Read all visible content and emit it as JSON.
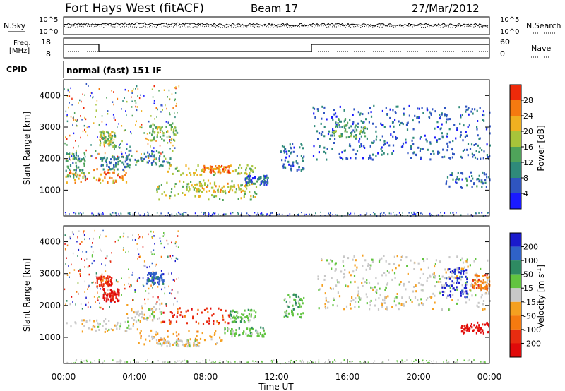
{
  "header": {
    "title": "Fort Hays West (fitACF)",
    "beam": "Beam 17",
    "date": "27/Mar/2012"
  },
  "top_panels": {
    "noise": {
      "left_label": "N.Sky",
      "right_label": "N.Search",
      "left_ticks": [
        "10^5",
        "10^0"
      ],
      "right_ticks": [
        "10^5",
        "10^0"
      ]
    },
    "freq": {
      "left_label_1": "Freq.",
      "left_label_2": "[MHz]",
      "right_label": "Nave",
      "left_ticks": [
        "18",
        "8"
      ],
      "right_ticks": [
        "60",
        "0"
      ]
    },
    "cpid": {
      "label": "CPID",
      "mode_text": "normal (fast) 151 IF"
    }
  },
  "chart_data": [
    {
      "type": "heatmap",
      "title": "",
      "xlabel": "Time UT",
      "ylabel": "Slant Range [km]",
      "x_ticks": [
        "00:00",
        "04:00",
        "08:00",
        "12:00",
        "16:00",
        "20:00",
        "00:00"
      ],
      "xlim": [
        0,
        24
      ],
      "ylim": [
        180,
        4500
      ],
      "y_ticks": [
        1000,
        2000,
        3000,
        4000
      ],
      "colorbar": {
        "label": "Power [dB]",
        "ticks": [
          4,
          8,
          12,
          16,
          20,
          24,
          28
        ],
        "range": [
          0,
          32
        ],
        "colors": [
          "#1a1aff",
          "#2f55c0",
          "#2f8a7a",
          "#4fa35a",
          "#a8c43a",
          "#f0b020",
          "#f57a10",
          "#ee2a0a"
        ]
      },
      "regions": [
        {
          "t0": 0.1,
          "t1": 3.5,
          "r0": 1250,
          "r1": 1700,
          "level": 22
        },
        {
          "t0": 0.1,
          "t1": 1.2,
          "r0": 1400,
          "r1": 2200,
          "level": 10
        },
        {
          "t0": 2.0,
          "t1": 3.6,
          "r0": 1650,
          "r1": 2100,
          "level": 6
        },
        {
          "t0": 2.0,
          "t1": 2.9,
          "r0": 2400,
          "r1": 2900,
          "level": 14
        },
        {
          "t0": 3.5,
          "t1": 6.0,
          "r0": 1750,
          "r1": 2300,
          "level": 8
        },
        {
          "t0": 4.8,
          "t1": 6.3,
          "r0": 2600,
          "r1": 3150,
          "level": 14
        },
        {
          "t0": 5.6,
          "t1": 10.8,
          "r0": 1500,
          "r1": 1850,
          "level": 17
        },
        {
          "t0": 7.8,
          "t1": 9.3,
          "r0": 1580,
          "r1": 1800,
          "level": 24
        },
        {
          "t0": 5.0,
          "t1": 11.0,
          "r0": 700,
          "r1": 1350,
          "level": 15
        },
        {
          "t0": 7.0,
          "t1": 10.5,
          "r0": 950,
          "r1": 1250,
          "level": 19
        },
        {
          "t0": 10.2,
          "t1": 11.5,
          "r0": 1200,
          "r1": 1500,
          "level": 6
        },
        {
          "t0": 12.2,
          "t1": 13.5,
          "r0": 1650,
          "r1": 2500,
          "level": 5
        },
        {
          "t0": 14.0,
          "t1": 24.0,
          "r0": 2000,
          "r1": 3700,
          "level": 5
        },
        {
          "t0": 15.2,
          "t1": 17.0,
          "r0": 2700,
          "r1": 3300,
          "level": 11
        },
        {
          "t0": 21.5,
          "t1": 24.0,
          "r0": 1100,
          "r1": 1600,
          "level": 6
        }
      ]
    },
    {
      "type": "heatmap",
      "title": "",
      "xlabel": "Time UT",
      "ylabel": "Slant Range [km]",
      "x_ticks": [
        "00:00",
        "04:00",
        "08:00",
        "12:00",
        "16:00",
        "20:00",
        "00:00"
      ],
      "xlim": [
        0,
        24
      ],
      "ylim": [
        180,
        4500
      ],
      "y_ticks": [
        1000,
        2000,
        3000,
        4000
      ],
      "colorbar": {
        "label": "Velocity [m s^-1]",
        "ticks": [
          "200",
          "100",
          "50",
          "15",
          "-15",
          "-50",
          "-100",
          "-200"
        ],
        "colors": [
          "#1a1acc",
          "#2f62c8",
          "#2e8a62",
          "#62c440",
          "#c8c8c8",
          "#f5a020",
          "#f57a10",
          "#e82c10",
          "#e00a0a"
        ]
      },
      "regions": [
        {
          "t0": 0.1,
          "t1": 4.5,
          "r0": 1200,
          "r1": 1650,
          "level": 4
        },
        {
          "t0": 3.5,
          "t1": 5.5,
          "r0": 1500,
          "r1": 2100,
          "level": 4
        },
        {
          "t0": 1.8,
          "t1": 2.7,
          "r0": 2600,
          "r1": 2950,
          "level": 7
        },
        {
          "t0": 2.2,
          "t1": 3.1,
          "r0": 2150,
          "r1": 2550,
          "level": 8
        },
        {
          "t0": 4.6,
          "t1": 5.6,
          "r0": 2700,
          "r1": 3050,
          "level": 1
        },
        {
          "t0": 5.5,
          "t1": 9.3,
          "r0": 1450,
          "r1": 1950,
          "level": 7
        },
        {
          "t0": 9.3,
          "t1": 10.8,
          "r0": 1500,
          "r1": 1900,
          "level": 3
        },
        {
          "t0": 4.2,
          "t1": 9.0,
          "r0": 800,
          "r1": 1250,
          "level": 5
        },
        {
          "t0": 5.2,
          "t1": 7.6,
          "r0": 750,
          "r1": 950,
          "level": 4
        },
        {
          "t0": 9.0,
          "t1": 11.3,
          "r0": 1050,
          "r1": 1350,
          "level": 3
        },
        {
          "t0": 12.4,
          "t1": 13.5,
          "r0": 1650,
          "r1": 2400,
          "level": 3
        },
        {
          "t0": 14.3,
          "t1": 24.0,
          "r0": 1900,
          "r1": 3600,
          "level": 4
        },
        {
          "t0": 21.3,
          "t1": 22.7,
          "r0": 2300,
          "r1": 3200,
          "level": 0
        },
        {
          "t0": 22.3,
          "t1": 24.0,
          "r0": 1150,
          "r1": 1500,
          "level": 8
        },
        {
          "t0": 23.0,
          "t1": 24.0,
          "r0": 2500,
          "r1": 3000,
          "level": 6
        }
      ]
    }
  ]
}
